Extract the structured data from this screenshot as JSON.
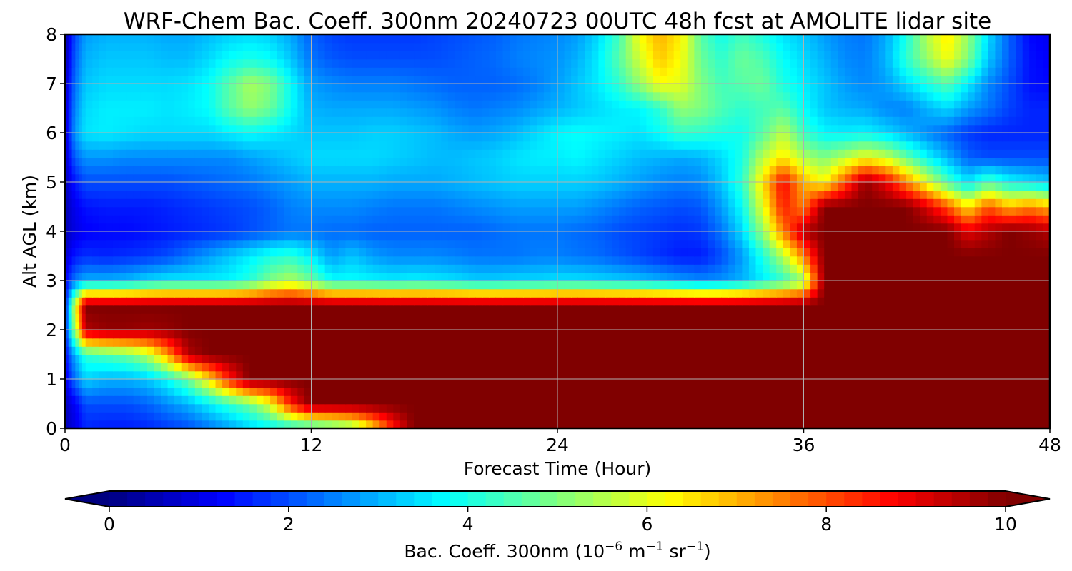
{
  "chart_data": {
    "type": "heatmap",
    "title": "WRF-Chem Bac. Coeff. 300nm  20240723 00UTC 48h fcst at AMOLITE lidar site",
    "xlabel": "Forecast Time (Hour)",
    "ylabel": "Alt AGL (km)",
    "xlim": [
      0,
      48
    ],
    "ylim": [
      0,
      8
    ],
    "x_ticks": [
      "0",
      "12",
      "24",
      "36",
      "48"
    ],
    "y_ticks": [
      "0",
      "1",
      "2",
      "3",
      "4",
      "5",
      "6",
      "7",
      "8"
    ],
    "grid": true,
    "colormap": "jet",
    "colorbar": {
      "orientation": "horizontal",
      "placement": "bottom",
      "range": [
        0,
        10
      ],
      "extend": "both",
      "ticks": [
        "0",
        "2",
        "4",
        "6",
        "8",
        "10"
      ],
      "label_main": "Bac. Coeff. 300nm  (10",
      "label_exp1": "−6",
      "label_mid": " m",
      "label_exp2": "−1",
      "label_mid2": " sr",
      "label_exp3": "−1",
      "label_end": ")"
    },
    "x": [
      0,
      0.5,
      1,
      2,
      3,
      4,
      5,
      6,
      7,
      8,
      9,
      10,
      11,
      12,
      13,
      14,
      15,
      16,
      17,
      18,
      19,
      20,
      21,
      22,
      23,
      24,
      25,
      26,
      27,
      28,
      29,
      30,
      31,
      32,
      33,
      34,
      35,
      36,
      37,
      38,
      39,
      40,
      41,
      42,
      43,
      44,
      45,
      46,
      47,
      48
    ],
    "y": [
      0,
      0.5,
      1,
      1.5,
      2,
      2.5,
      3,
      3.5,
      4,
      4.5,
      5,
      5.5,
      6,
      6.5,
      7,
      7.5,
      8
    ],
    "z": [
      [
        0.5,
        1.0,
        1.6,
        1.5,
        1.5,
        1.6,
        1.8,
        2.0,
        2.4,
        2.8,
        3.3,
        3.6,
        3.8,
        4.0,
        4.4,
        4.9,
        6.5,
        8.5,
        10,
        10,
        10,
        10,
        10,
        10,
        10,
        10,
        10,
        10,
        10,
        10,
        10,
        10,
        10,
        10,
        10,
        10,
        10,
        10,
        10,
        10,
        10,
        10,
        10,
        10,
        10,
        10,
        10,
        10,
        10,
        10
      ],
      [
        0.6,
        1.2,
        2.0,
        2.0,
        2.0,
        2.2,
        2.6,
        3.0,
        3.6,
        4.2,
        4.8,
        6.0,
        8.5,
        10,
        10,
        10,
        10,
        10,
        10,
        10,
        10,
        10,
        10,
        10,
        10,
        10,
        10,
        10,
        10,
        10,
        10,
        10,
        10,
        10,
        10,
        10,
        10,
        10,
        10,
        10,
        10,
        10,
        10,
        10,
        10,
        10,
        10,
        10,
        10,
        10
      ],
      [
        1.0,
        2.4,
        3.3,
        3.0,
        3.0,
        3.2,
        3.8,
        4.8,
        6.5,
        8.5,
        10,
        10,
        10,
        10,
        10,
        10,
        10,
        10,
        10,
        10,
        10,
        10,
        10,
        10,
        10,
        10,
        10,
        10,
        10,
        10,
        10,
        10,
        10,
        10,
        10,
        10,
        10,
        10,
        10,
        10,
        10,
        10,
        10,
        10,
        10,
        10,
        10,
        10,
        10,
        10
      ],
      [
        1.3,
        3.0,
        4.2,
        4.5,
        4.8,
        5.5,
        7.2,
        9.5,
        10,
        10,
        10,
        10,
        10,
        10,
        10,
        10,
        10,
        10,
        10,
        10,
        10,
        10,
        10,
        10,
        10,
        10,
        10,
        10,
        10,
        10,
        10,
        10,
        10,
        10,
        10,
        10,
        10,
        10,
        10,
        10,
        10,
        10,
        10,
        10,
        10,
        10,
        10,
        10,
        10,
        10
      ],
      [
        1.6,
        5.5,
        9.5,
        9.8,
        9.8,
        9.7,
        9.8,
        10,
        10,
        10,
        10,
        10,
        10,
        10,
        10,
        10,
        10,
        10,
        10,
        10,
        10,
        10,
        10,
        10,
        10,
        10,
        10,
        10,
        10,
        10,
        10,
        10,
        10,
        10,
        10,
        10,
        10,
        10,
        10,
        10,
        10,
        10,
        10,
        10,
        10,
        10,
        10,
        10,
        10,
        10
      ],
      [
        1.5,
        6.0,
        10,
        10,
        10,
        10,
        10,
        10,
        10,
        10,
        10,
        10,
        10,
        10,
        10,
        10,
        10,
        10,
        10,
        10,
        10,
        10,
        10,
        10,
        10,
        10,
        10,
        10,
        10,
        10,
        10,
        10,
        10,
        10,
        10,
        10,
        10,
        10,
        10,
        10,
        10,
        10,
        10,
        10,
        10,
        10,
        10,
        10,
        10,
        10
      ],
      [
        1.2,
        2.5,
        3.0,
        3.0,
        3.1,
        3.4,
        3.6,
        3.6,
        3.6,
        3.7,
        4.1,
        5.0,
        5.5,
        4.8,
        3.8,
        3.8,
        3.7,
        3.6,
        3.7,
        3.6,
        3.5,
        3.3,
        3.3,
        3.4,
        3.4,
        3.5,
        3.5,
        3.4,
        3.3,
        3.2,
        3.0,
        2.8,
        2.6,
        2.7,
        3.0,
        3.6,
        4.2,
        5.2,
        10,
        10,
        10,
        10,
        10,
        10,
        10,
        10,
        10,
        10,
        10,
        10
      ],
      [
        0.8,
        1.5,
        1.7,
        1.6,
        1.7,
        1.8,
        2.0,
        2.4,
        2.8,
        3.2,
        3.6,
        4.0,
        4.2,
        3.6,
        2.8,
        3.2,
        2.8,
        2.6,
        2.6,
        2.6,
        2.5,
        2.4,
        2.4,
        2.4,
        2.5,
        2.5,
        2.4,
        2.3,
        2.1,
        1.9,
        1.7,
        1.5,
        1.5,
        2.0,
        2.8,
        4.0,
        5.5,
        7.5,
        10,
        10,
        10,
        10,
        10,
        10,
        10,
        10,
        10,
        10,
        10,
        10
      ],
      [
        0.5,
        1.0,
        1.2,
        1.3,
        1.3,
        1.4,
        1.5,
        1.6,
        1.7,
        1.8,
        2.0,
        2.2,
        2.4,
        2.4,
        2.3,
        2.3,
        2.2,
        2.2,
        2.2,
        2.2,
        2.2,
        2.2,
        2.3,
        2.4,
        2.4,
        2.4,
        2.3,
        2.2,
        2.0,
        1.9,
        1.8,
        1.7,
        1.8,
        2.4,
        3.4,
        5.2,
        7.5,
        9.5,
        10,
        10,
        10,
        10,
        10,
        10,
        10,
        9.0,
        9.5,
        10,
        9.8,
        9.5
      ],
      [
        0.5,
        1.1,
        1.4,
        1.5,
        1.5,
        1.5,
        1.6,
        1.7,
        1.8,
        1.9,
        2.0,
        2.2,
        2.5,
        2.6,
        2.6,
        2.6,
        2.5,
        2.4,
        2.4,
        2.4,
        2.5,
        2.6,
        2.7,
        2.8,
        2.8,
        2.8,
        2.8,
        2.6,
        2.4,
        2.2,
        2.1,
        2.0,
        2.1,
        2.8,
        3.8,
        6.0,
        8.5,
        7.5,
        10,
        10,
        10,
        10,
        10,
        9.2,
        8.0,
        6.5,
        8.0,
        7.0,
        7.5,
        7.0
      ],
      [
        0.6,
        1.5,
        2.0,
        2.0,
        2.0,
        2.0,
        2.0,
        2.1,
        2.2,
        2.3,
        2.4,
        2.6,
        2.8,
        3.0,
        3.0,
        3.0,
        3.0,
        2.9,
        2.9,
        2.9,
        3.0,
        3.1,
        3.2,
        3.3,
        3.3,
        3.3,
        3.3,
        3.2,
        3.0,
        2.8,
        2.6,
        2.5,
        2.6,
        3.2,
        4.2,
        6.5,
        8.8,
        7.0,
        6.2,
        8.0,
        9.8,
        9.0,
        7.5,
        6.0,
        4.5,
        3.5,
        4.5,
        3.8,
        3.5,
        3.2
      ],
      [
        0.7,
        2.2,
        2.7,
        2.7,
        2.6,
        2.6,
        2.6,
        2.6,
        2.6,
        2.6,
        2.8,
        3.0,
        3.2,
        3.4,
        3.4,
        3.4,
        3.4,
        3.3,
        3.2,
        3.1,
        3.1,
        3.2,
        3.3,
        3.5,
        3.6,
        3.6,
        3.7,
        3.5,
        3.3,
        3.1,
        3.0,
        2.9,
        3.0,
        3.4,
        4.0,
        5.6,
        6.5,
        5.5,
        5.0,
        5.6,
        6.2,
        5.8,
        4.8,
        3.8,
        3.0,
        2.2,
        2.0,
        2.0,
        2.0,
        2.0
      ],
      [
        0.8,
        2.8,
        3.5,
        3.6,
        3.5,
        3.4,
        3.4,
        3.4,
        3.4,
        3.6,
        3.8,
        3.6,
        3.4,
        3.2,
        3.2,
        3.2,
        3.3,
        3.3,
        3.2,
        3.1,
        2.9,
        2.8,
        2.9,
        3.1,
        3.4,
        3.7,
        3.8,
        3.7,
        3.6,
        3.5,
        3.8,
        4.3,
        4.2,
        4.0,
        3.9,
        4.6,
        5.6,
        4.3,
        3.7,
        3.6,
        3.7,
        3.4,
        3.0,
        2.6,
        2.2,
        1.8,
        1.6,
        1.6,
        1.6,
        1.6
      ],
      [
        0.8,
        2.6,
        3.4,
        3.6,
        3.6,
        3.6,
        3.5,
        3.6,
        3.8,
        4.6,
        5.2,
        4.8,
        3.8,
        3.0,
        2.9,
        2.9,
        2.9,
        2.9,
        2.8,
        2.7,
        2.5,
        2.4,
        2.5,
        2.6,
        2.8,
        3.0,
        3.2,
        3.4,
        3.6,
        3.7,
        4.2,
        5.2,
        5.0,
        4.5,
        4.2,
        4.4,
        4.6,
        3.8,
        3.2,
        3.0,
        2.9,
        2.6,
        2.5,
        3.0,
        3.4,
        2.8,
        2.4,
        1.9,
        1.6,
        1.6
      ],
      [
        0.7,
        2.4,
        3.2,
        3.4,
        3.4,
        3.4,
        3.4,
        3.5,
        3.8,
        4.6,
        5.4,
        5.0,
        3.8,
        2.8,
        2.6,
        2.5,
        2.5,
        2.5,
        2.4,
        2.3,
        2.2,
        2.2,
        2.2,
        2.3,
        2.5,
        2.8,
        3.2,
        3.6,
        4.2,
        5.2,
        6.2,
        6.0,
        5.0,
        4.4,
        4.6,
        4.8,
        4.0,
        3.6,
        3.2,
        2.8,
        2.6,
        2.8,
        3.4,
        4.0,
        4.6,
        3.6,
        2.6,
        2.0,
        1.4,
        1.3
      ],
      [
        0.5,
        2.2,
        3.0,
        3.2,
        3.2,
        3.2,
        3.1,
        3.1,
        3.4,
        3.8,
        4.0,
        3.8,
        3.2,
        2.4,
        2.1,
        2.0,
        2.0,
        2.0,
        2.0,
        2.0,
        2.1,
        2.2,
        2.3,
        2.5,
        2.6,
        2.7,
        3.0,
        3.6,
        4.6,
        5.8,
        6.8,
        6.2,
        4.8,
        4.2,
        4.8,
        4.5,
        3.8,
        3.4,
        3.0,
        2.6,
        2.5,
        3.0,
        4.2,
        5.2,
        6.2,
        5.0,
        3.2,
        2.2,
        1.4,
        1.2
      ],
      [
        0.4,
        2.0,
        2.8,
        3.0,
        3.0,
        3.0,
        2.9,
        2.9,
        3.1,
        3.3,
        3.4,
        3.3,
        2.9,
        2.2,
        1.9,
        1.8,
        1.8,
        1.8,
        1.8,
        1.9,
        2.0,
        2.1,
        2.2,
        2.4,
        2.5,
        2.6,
        2.8,
        3.4,
        4.4,
        6.2,
        7.0,
        6.4,
        4.6,
        3.9,
        4.4,
        4.0,
        3.5,
        3.2,
        2.8,
        2.5,
        2.4,
        2.9,
        4.0,
        5.5,
        6.5,
        5.2,
        3.4,
        2.2,
        1.3,
        1.1
      ]
    ]
  }
}
